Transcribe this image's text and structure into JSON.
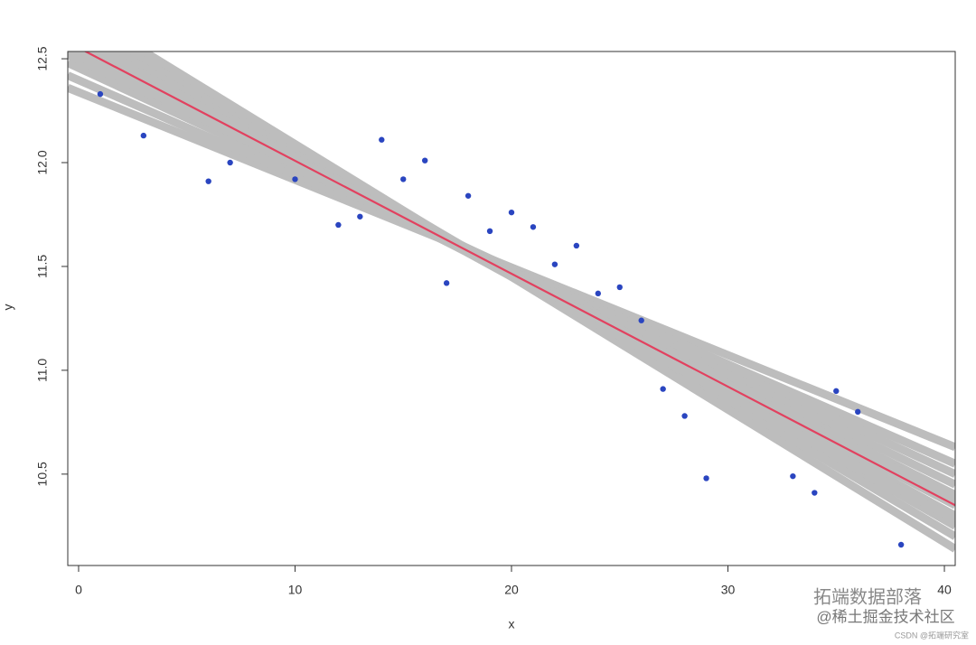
{
  "chart_data": {
    "type": "scatter",
    "x_label": "x",
    "y_label": "y",
    "xlim": [
      -0.5,
      40.5
    ],
    "ylim": [
      10.06,
      12.535
    ],
    "xticks": [
      0,
      10,
      20,
      30,
      40
    ],
    "yticks": [
      10.5,
      {
        "value": 11,
        "label": "11.0"
      },
      11.5,
      {
        "value": 12,
        "label": "12.0"
      },
      12.5
    ],
    "points": {
      "color": "#2a45c0",
      "x": [
        1,
        3,
        6,
        7,
        10,
        12,
        13,
        14,
        15,
        16,
        17,
        18,
        19,
        20,
        21,
        22,
        23,
        24,
        25,
        26,
        27,
        28,
        29,
        33,
        34,
        35,
        36,
        38
      ],
      "values": [
        12.33,
        12.13,
        11.91,
        12.0,
        11.92,
        11.7,
        11.74,
        12.11,
        11.92,
        12.01,
        11.42,
        11.84,
        11.67,
        11.76,
        11.69,
        11.51,
        11.6,
        11.37,
        11.4,
        11.24,
        10.91,
        10.78,
        10.48,
        10.49,
        10.41,
        10.9,
        10.8,
        10.16
      ]
    },
    "sample_lines": {
      "color": "#bdbdbd",
      "lines": [
        {
          "x": [
            -0.5,
            40.5
          ],
          "values": [
            12.36,
            10.63
          ]
        },
        {
          "x": [
            -0.5,
            40.5
          ],
          "values": [
            12.42,
            10.55
          ]
        },
        {
          "x": [
            -0.5,
            40.5
          ],
          "values": [
            12.48,
            10.5
          ]
        },
        {
          "x": [
            -0.5,
            40.5
          ],
          "values": [
            12.52,
            10.45
          ]
        },
        {
          "x": [
            -0.5,
            40.5
          ],
          "values": [
            12.56,
            10.4
          ]
        },
        {
          "x": [
            -0.5,
            40.5
          ],
          "values": [
            12.6,
            10.35
          ]
        },
        {
          "x": [
            -0.5,
            40.5
          ],
          "values": [
            12.64,
            10.3
          ]
        },
        {
          "x": [
            -0.5,
            40.5
          ],
          "values": [
            12.68,
            10.25
          ]
        },
        {
          "x": [
            -0.5,
            40.5
          ],
          "values": [
            12.72,
            10.2
          ]
        },
        {
          "x": [
            -0.5,
            40.5
          ],
          "values": [
            12.76,
            10.14
          ]
        },
        {
          "x": [
            -0.5,
            40.5
          ],
          "values": [
            12.62,
            10.28
          ]
        },
        {
          "x": [
            -0.5,
            40.5
          ],
          "values": [
            12.54,
            10.38
          ]
        }
      ]
    },
    "fit_line": {
      "color": "#e2415f",
      "x": [
        -0.5,
        40.5
      ],
      "values": [
        12.58,
        10.35
      ]
    }
  },
  "watermarks": {
    "brand": "拓端数据部落",
    "community": "@稀土掘金技术社区",
    "source": "CSDN @拓端研究室"
  }
}
